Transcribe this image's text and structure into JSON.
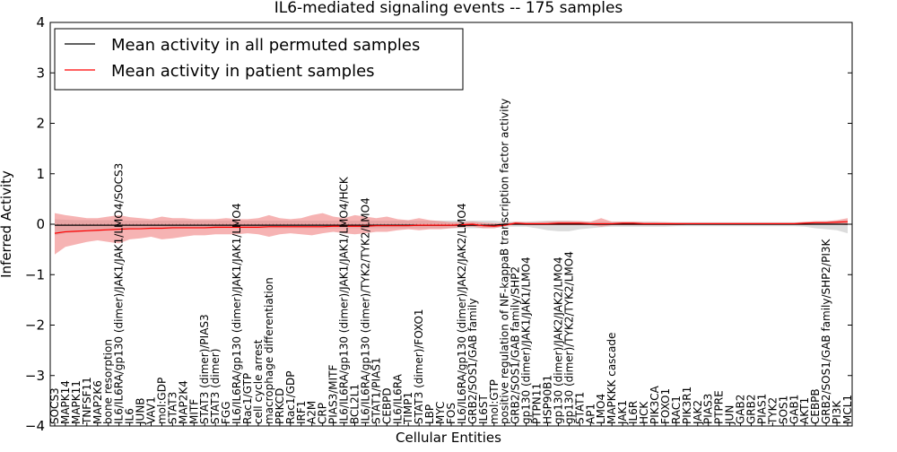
{
  "chart_data": {
    "type": "line",
    "title": "IL6-mediated signaling events -- 175 samples",
    "xlabel": "Cellular Entities",
    "ylabel": "Inferred Activity",
    "ylim": [
      -4,
      4
    ],
    "yticks": [
      -4,
      -3,
      -2,
      -1,
      0,
      1,
      2,
      3,
      4
    ],
    "legend_position": "top-left",
    "colors": {
      "permuted": "#000000",
      "patient": "#ff0000",
      "patient_band": "#f08080",
      "permuted_band": "#c0c0c0"
    },
    "categories": [
      "SOCS3",
      "MAPK14",
      "MAPK11",
      "TNFSF11",
      "MAP2K6",
      "bone resorption",
      "IL6/IL6RA/gp130 (dimer)/JAK1/JAK1/LMO4/SOCS3",
      "IL6",
      "JUNB",
      "VAV1",
      "mol:GDP",
      "STAT3",
      "MAP2K4",
      "MITF",
      "STAT3 (dimer)/PIAS3",
      "STAT3 (dimer)",
      "FGG",
      "IL6/IL6RA/gp130 (dimer)/JAK1/JAK1/LMO4",
      "Rac1/GTP",
      "cell cycle arrest",
      "macrophage differentiation",
      "PRKCD",
      "Rac1/GDP",
      "IRF1",
      "A2M",
      "CRP",
      "PIAS3/MITF",
      "IL6/IL6RA/gp130 (dimer)/JAK1/JAK1/LMO4/HCK",
      "BCL2L1",
      "IL6/IL6RA/gp130 (dimer)/TYK2/TYK2/LMO4",
      "STAT1/PIAS1",
      "CEBPD",
      "IL6/IL6RA",
      "TIMP1",
      "STAT3 (dimer)/FOXO1",
      "LBP",
      "MYC",
      "FOS",
      "IL6/IL6RA/gp130 (dimer)/JAK2/JAK2/LMO4",
      "GRB2/SOS1/GAB family",
      "IL6ST",
      "mol:GTP",
      "positive regulation of NF-kappaB transcription factor activity",
      "GRB2/SOS1/GAB family/SHP2",
      "gp130 (dimer)/JAK1/JAK1/LMO4",
      "PTPN11",
      "HSP90B1",
      "gp130 (dimer)/JAK2/JAK2/LMO4",
      "gp130 (dimer)/TYK2/TYK2/LMO4",
      "STAT1",
      "AP1",
      "LMO4",
      "MAPKKK cascade",
      "JAK1",
      "IL6R",
      "HCK",
      "PIK3CA",
      "FOXO1",
      "RAC1",
      "PIK3R1",
      "JAK2",
      "PIAS3",
      "PTPRE",
      "JUN",
      "GAB2",
      "GRB2",
      "PIAS1",
      "TYK2",
      "SOS1",
      "GAB1",
      "AKT1",
      "CEBPB",
      "GRB2/SOS1/GAB family/SHP2/PI3K",
      "PI3K",
      "MCL1"
    ],
    "series": [
      {
        "name": "Mean activity in all permuted samples",
        "values": [
          -0.02,
          -0.02,
          -0.02,
          -0.02,
          -0.02,
          -0.02,
          -0.02,
          -0.02,
          -0.02,
          -0.02,
          -0.02,
          -0.02,
          -0.02,
          -0.02,
          -0.02,
          -0.02,
          -0.02,
          -0.02,
          -0.02,
          -0.02,
          -0.02,
          -0.02,
          -0.02,
          -0.02,
          -0.02,
          -0.02,
          -0.02,
          -0.02,
          -0.02,
          -0.02,
          -0.02,
          -0.02,
          -0.02,
          -0.02,
          -0.02,
          -0.02,
          -0.02,
          -0.02,
          -0.02,
          -0.02,
          -0.02,
          -0.02,
          0.0,
          0.0,
          0.0,
          0.0,
          0.0,
          0.0,
          0.0,
          0.0,
          0.0,
          0.0,
          0.0,
          0.0,
          0.0,
          0.0,
          0.0,
          0.0,
          0.0,
          0.0,
          0.0,
          0.0,
          0.0,
          0.0,
          0.0,
          0.0,
          0.0,
          0.0,
          0.0,
          0.0,
          0.0,
          0.0,
          0.0,
          0.0,
          0.0
        ],
        "lower": [
          -0.22,
          -0.18,
          -0.16,
          -0.15,
          -0.14,
          -0.13,
          -0.12,
          -0.11,
          -0.1,
          -0.1,
          -0.1,
          -0.1,
          -0.09,
          -0.09,
          -0.09,
          -0.09,
          -0.08,
          -0.08,
          -0.08,
          -0.08,
          -0.08,
          -0.08,
          -0.08,
          -0.08,
          -0.08,
          -0.08,
          -0.08,
          -0.08,
          -0.08,
          -0.08,
          -0.08,
          -0.08,
          -0.08,
          -0.08,
          -0.08,
          -0.08,
          -0.08,
          -0.08,
          -0.08,
          -0.08,
          -0.08,
          -0.08,
          -0.05,
          -0.05,
          -0.05,
          -0.08,
          -0.12,
          -0.14,
          -0.14,
          -0.1,
          -0.08,
          -0.06,
          -0.05,
          -0.05,
          -0.05,
          -0.05,
          -0.05,
          -0.05,
          -0.04,
          -0.04,
          -0.04,
          -0.04,
          -0.04,
          -0.04,
          -0.04,
          -0.04,
          -0.04,
          -0.04,
          -0.04,
          -0.04,
          -0.05,
          -0.08,
          -0.1,
          -0.12,
          -0.18
        ],
        "upper": [
          0.1,
          0.09,
          0.08,
          0.08,
          0.08,
          0.08,
          0.07,
          0.07,
          0.07,
          0.07,
          0.07,
          0.07,
          0.07,
          0.07,
          0.07,
          0.07,
          0.07,
          0.07,
          0.07,
          0.07,
          0.07,
          0.07,
          0.07,
          0.07,
          0.07,
          0.07,
          0.07,
          0.07,
          0.07,
          0.07,
          0.07,
          0.07,
          0.07,
          0.07,
          0.07,
          0.07,
          0.07,
          0.07,
          0.07,
          0.07,
          0.07,
          0.07,
          0.05,
          0.05,
          0.05,
          0.06,
          0.07,
          0.07,
          0.07,
          0.06,
          0.05,
          0.05,
          0.05,
          0.05,
          0.05,
          0.05,
          0.05,
          0.04,
          0.04,
          0.04,
          0.04,
          0.04,
          0.04,
          0.04,
          0.04,
          0.04,
          0.04,
          0.04,
          0.04,
          0.04,
          0.04,
          0.05,
          0.06,
          0.07,
          0.08
        ]
      },
      {
        "name": "Mean activity in patient samples",
        "values": [
          -0.18,
          -0.15,
          -0.14,
          -0.13,
          -0.12,
          -0.11,
          -0.1,
          -0.09,
          -0.09,
          -0.08,
          -0.08,
          -0.07,
          -0.07,
          -0.07,
          -0.07,
          -0.06,
          -0.06,
          -0.06,
          -0.06,
          -0.06,
          -0.05,
          -0.05,
          -0.05,
          -0.05,
          -0.05,
          -0.05,
          -0.04,
          -0.04,
          -0.04,
          -0.04,
          -0.03,
          -0.03,
          -0.03,
          -0.03,
          -0.02,
          -0.02,
          -0.02,
          -0.02,
          -0.01,
          0.0,
          -0.03,
          -0.04,
          -0.02,
          0.02,
          0.01,
          0.01,
          0.01,
          0.02,
          0.02,
          0.02,
          0.01,
          0.01,
          0.01,
          0.02,
          0.02,
          0.01,
          0.01,
          0.01,
          0.01,
          0.01,
          0.01,
          0.01,
          0.01,
          0.01,
          0.01,
          0.01,
          0.01,
          0.01,
          0.01,
          0.01,
          0.02,
          0.03,
          0.03,
          0.04,
          0.05
        ],
        "lower": [
          -0.6,
          -0.45,
          -0.4,
          -0.35,
          -0.32,
          -0.35,
          -0.38,
          -0.3,
          -0.28,
          -0.25,
          -0.3,
          -0.28,
          -0.25,
          -0.22,
          -0.22,
          -0.2,
          -0.2,
          -0.2,
          -0.18,
          -0.2,
          -0.25,
          -0.2,
          -0.18,
          -0.2,
          -0.22,
          -0.18,
          -0.15,
          -0.18,
          -0.2,
          -0.18,
          -0.15,
          -0.15,
          -0.12,
          -0.1,
          -0.12,
          -0.1,
          -0.1,
          -0.08,
          -0.06,
          -0.05,
          -0.08,
          -0.08,
          -0.04,
          0.0,
          -0.02,
          -0.02,
          -0.02,
          -0.02,
          -0.02,
          -0.02,
          -0.02,
          -0.05,
          -0.02,
          -0.02,
          -0.02,
          -0.02,
          -0.02,
          -0.02,
          -0.02,
          -0.01,
          -0.01,
          -0.01,
          -0.01,
          -0.01,
          -0.01,
          -0.01,
          -0.01,
          -0.01,
          -0.01,
          -0.01,
          0.0,
          0.0,
          0.0,
          0.0,
          -0.02
        ],
        "upper": [
          0.22,
          0.18,
          0.15,
          0.12,
          0.12,
          0.15,
          0.18,
          0.14,
          0.12,
          0.1,
          0.15,
          0.12,
          0.12,
          0.1,
          0.1,
          0.1,
          0.12,
          0.1,
          0.1,
          0.12,
          0.18,
          0.12,
          0.1,
          0.12,
          0.18,
          0.22,
          0.15,
          0.12,
          0.18,
          0.15,
          0.12,
          0.15,
          0.1,
          0.08,
          0.12,
          0.08,
          0.06,
          0.04,
          0.04,
          0.05,
          0.03,
          0.02,
          0.02,
          0.05,
          0.04,
          0.04,
          0.05,
          0.06,
          0.06,
          0.06,
          0.05,
          0.12,
          0.05,
          0.05,
          0.05,
          0.04,
          0.04,
          0.04,
          0.03,
          0.03,
          0.03,
          0.03,
          0.03,
          0.03,
          0.03,
          0.03,
          0.03,
          0.03,
          0.03,
          0.03,
          0.05,
          0.06,
          0.06,
          0.08,
          0.12
        ]
      }
    ]
  }
}
